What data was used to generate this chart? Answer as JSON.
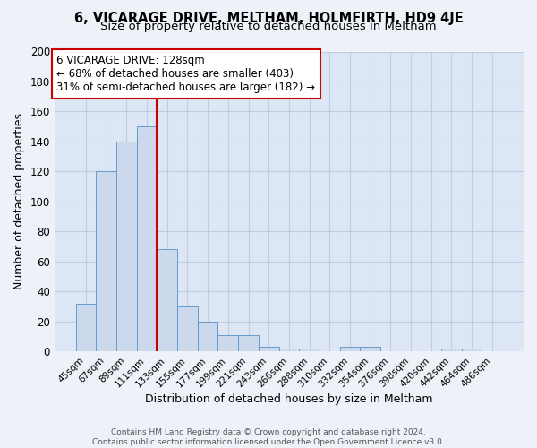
{
  "title1": "6, VICARAGE DRIVE, MELTHAM, HOLMFIRTH, HD9 4JE",
  "title2": "Size of property relative to detached houses in Meltham",
  "xlabel": "Distribution of detached houses by size in Meltham",
  "ylabel": "Number of detached properties",
  "bar_labels": [
    "45sqm",
    "67sqm",
    "89sqm",
    "111sqm",
    "133sqm",
    "155sqm",
    "177sqm",
    "199sqm",
    "221sqm",
    "243sqm",
    "266sqm",
    "288sqm",
    "310sqm",
    "332sqm",
    "354sqm",
    "376sqm",
    "398sqm",
    "420sqm",
    "442sqm",
    "464sqm",
    "486sqm"
  ],
  "bar_values": [
    32,
    120,
    140,
    150,
    68,
    30,
    20,
    11,
    11,
    3,
    2,
    2,
    0,
    3,
    3,
    0,
    0,
    0,
    2,
    2,
    0
  ],
  "bar_color": "#ccd9ec",
  "bar_edge_color": "#6699cc",
  "red_line_x": 3.5,
  "red_line_color": "#cc0000",
  "annotation_text": "6 VICARAGE DRIVE: 128sqm\n← 68% of detached houses are smaller (403)\n31% of semi-detached houses are larger (182) →",
  "annotation_box_color": "#ffffff",
  "annotation_box_edge": "#cc0000",
  "ylim": [
    0,
    200
  ],
  "yticks": [
    0,
    20,
    40,
    60,
    80,
    100,
    120,
    140,
    160,
    180,
    200
  ],
  "grid_color": "#c0cce0",
  "bg_color": "#dce6f5",
  "footer_text": "Contains HM Land Registry data © Crown copyright and database right 2024.\nContains public sector information licensed under the Open Government Licence v3.0.",
  "title1_fontsize": 10.5,
  "title2_fontsize": 9.5,
  "xlabel_fontsize": 9,
  "ylabel_fontsize": 9,
  "annot_fontsize": 8.5
}
